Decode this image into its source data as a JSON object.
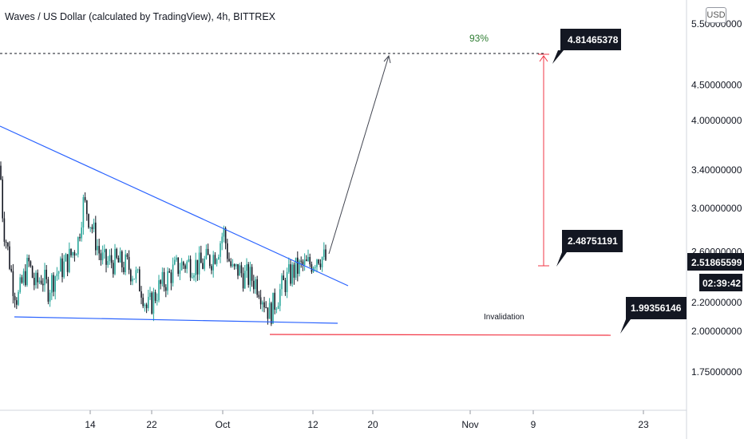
{
  "header": {
    "title": "Waves / US Dollar (calculated by TradingView), 4h, BITTREX",
    "currency_button": "USD"
  },
  "chart_data": {
    "type": "candlestick",
    "symbol": "Waves / US Dollar",
    "interval": "4h",
    "exchange": "BITTREX",
    "y_scale": "log",
    "ylim": [
      1.55,
      5.6
    ],
    "y_ticks": [
      {
        "value": 5.5,
        "label": "5.50000000"
      },
      {
        "value": 4.5,
        "label": "4.50000000"
      },
      {
        "value": 4.0,
        "label": "4.00000000"
      },
      {
        "value": 3.4,
        "label": "3.40000000"
      },
      {
        "value": 3.0,
        "label": "3.00000000"
      },
      {
        "value": 2.6,
        "label": "2.60000000"
      },
      {
        "value": 2.2,
        "label": "2.20000000"
      },
      {
        "value": 2.0,
        "label": "2.00000000"
      },
      {
        "value": 1.75,
        "label": "1.75000000"
      }
    ],
    "x_ticks": [
      "14",
      "22",
      "Oct",
      "12",
      "20",
      "Nov",
      "9",
      "23"
    ],
    "price_path": [
      [
        0,
        3.45
      ],
      [
        4,
        2.85
      ],
      [
        10,
        2.6
      ],
      [
        16,
        2.35
      ],
      [
        22,
        2.22
      ],
      [
        28,
        2.35
      ],
      [
        36,
        2.5
      ],
      [
        44,
        2.32
      ],
      [
        52,
        2.4
      ],
      [
        60,
        2.3
      ],
      [
        70,
        2.42
      ],
      [
        80,
        2.48
      ],
      [
        90,
        2.58
      ],
      [
        98,
        2.7
      ],
      [
        104,
        3.05
      ],
      [
        108,
        3.0
      ],
      [
        114,
        2.85
      ],
      [
        120,
        2.7
      ],
      [
        126,
        2.55
      ],
      [
        132,
        2.5
      ],
      [
        140,
        2.52
      ],
      [
        150,
        2.5
      ],
      [
        160,
        2.48
      ],
      [
        170,
        2.4
      ],
      [
        178,
        2.3
      ],
      [
        184,
        2.15
      ],
      [
        190,
        2.2
      ],
      [
        198,
        2.3
      ],
      [
        206,
        2.35
      ],
      [
        214,
        2.42
      ],
      [
        222,
        2.47
      ],
      [
        232,
        2.5
      ],
      [
        242,
        2.5
      ],
      [
        250,
        2.48
      ],
      [
        258,
        2.52
      ],
      [
        266,
        2.55
      ],
      [
        274,
        2.65
      ],
      [
        280,
        2.78
      ],
      [
        286,
        2.55
      ],
      [
        292,
        2.42
      ],
      [
        298,
        2.45
      ],
      [
        306,
        2.4
      ],
      [
        316,
        2.38
      ],
      [
        324,
        2.33
      ],
      [
        332,
        2.2
      ],
      [
        338,
        2.12
      ],
      [
        344,
        2.2
      ],
      [
        352,
        2.3
      ],
      [
        360,
        2.38
      ],
      [
        368,
        2.44
      ],
      [
        376,
        2.47
      ],
      [
        384,
        2.48
      ],
      [
        392,
        2.52
      ],
      [
        398,
        2.58
      ],
      [
        404,
        2.55
      ],
      [
        410,
        2.52
      ]
    ],
    "lines": [
      {
        "type": "trendline",
        "role": "descending-resistance",
        "color": "#2962ff"
      },
      {
        "type": "trendline",
        "role": "support",
        "color": "#2962ff"
      },
      {
        "type": "projection",
        "color": "#434651"
      },
      {
        "type": "horizontal-dashed-target",
        "value": 4.81465378,
        "color": "#131722"
      },
      {
        "type": "price-range",
        "from": 2.48751191,
        "to": 4.81465378,
        "color": "#f23645"
      },
      {
        "type": "invalidation-line",
        "value": 1.99356146,
        "color": "#f23645"
      }
    ],
    "annotations": {
      "percent_label": "93%",
      "target_callout": "4.81465378",
      "entry_callout": "2.48751191",
      "invalidation_callout": "1.99356146",
      "invalidation_label": "Invalidation"
    },
    "last_price": {
      "value": "2.51865599",
      "countdown": "02:39:42"
    },
    "colors": {
      "up": "#26a69a",
      "down": "#131722",
      "trendline": "#2962ff",
      "range": "#f23645",
      "percent": "#2e7d32"
    }
  }
}
